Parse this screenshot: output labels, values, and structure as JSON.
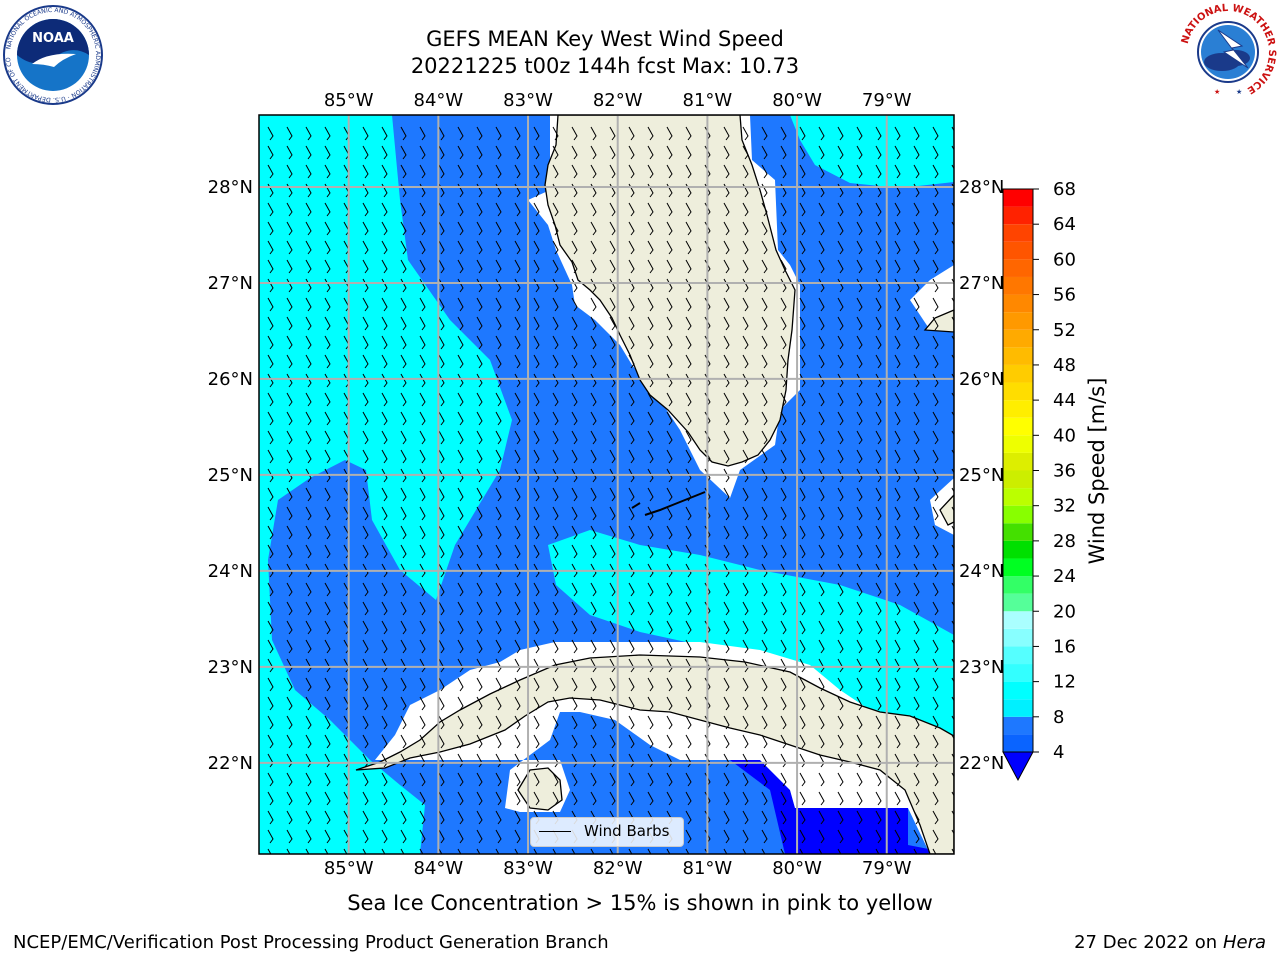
{
  "title": {
    "line1": "GEFS MEAN Key West Wind Speed",
    "line2": "20221225 t00z 144h fcst   Max: 10.73"
  },
  "map": {
    "type": "contour map with wind barbs",
    "region": "South Florida, Straits of Florida, western Cuba",
    "lon_range": [
      -86.0,
      -78.25
    ],
    "lat_range": [
      21.05,
      28.75
    ],
    "lon_ticks": [
      "85°W",
      "84°W",
      "83°W",
      "82°W",
      "81°W",
      "80°W",
      "79°W"
    ],
    "lat_ticks": [
      "28°N",
      "27°N",
      "26°N",
      "25°N",
      "24°N",
      "23°N",
      "22°N"
    ],
    "grid": true,
    "land_color": "#eeeedc",
    "coastline_color": "#000000",
    "barb_style": "calm-light north-northeast barbs"
  },
  "legend": {
    "label": "Wind Barbs",
    "placement": "bottom-center"
  },
  "colorbar": {
    "label": "Wind Speed [m/s]",
    "ticks": [
      4,
      8,
      12,
      16,
      20,
      24,
      28,
      32,
      36,
      40,
      44,
      48,
      52,
      56,
      60,
      64,
      68
    ],
    "levels": [
      4,
      6,
      8,
      10,
      12,
      14,
      16,
      18,
      20,
      22,
      24,
      26,
      28,
      30,
      32,
      34,
      36,
      38,
      40,
      42,
      44,
      46,
      48,
      50,
      52,
      54,
      56,
      58,
      60,
      62,
      64,
      66,
      68
    ],
    "colors": [
      "#0a64ff",
      "#1e78ff",
      "#00f0ff",
      "#00ffff",
      "#33ffff",
      "#55ffff",
      "#88ffff",
      "#aaffff",
      "#55ff99",
      "#33ff66",
      "#00ff22",
      "#00e000",
      "#44e000",
      "#88ff00",
      "#bbff00",
      "#ccee00",
      "#ddee00",
      "#eeff00",
      "#ffff00",
      "#ffee00",
      "#ffdd00",
      "#ffcc00",
      "#ffbb00",
      "#ffaa00",
      "#ff9900",
      "#ff8800",
      "#ff7700",
      "#ff6600",
      "#ff5500",
      "#ff4400",
      "#ff2200",
      "#ff0000"
    ],
    "under_color": "#0000ff"
  },
  "notes": {
    "sea_ice": "Sea Ice Concentration > 15% is shown in pink to yellow",
    "credit": "NCEP/EMC/Verification Post Processing Product Generation Branch",
    "date": "27 Dec 2022 on",
    "machine": "Hera"
  },
  "logos": {
    "noaa_text": "NOAA",
    "noaa_ring": "NATIONAL OCEANIC AND ATMOSPHERIC ADMINISTRATION · U.S. DEPARTMENT OF COMMERCE",
    "nws_ring": "NATIONAL WEATHER SERVICE"
  }
}
